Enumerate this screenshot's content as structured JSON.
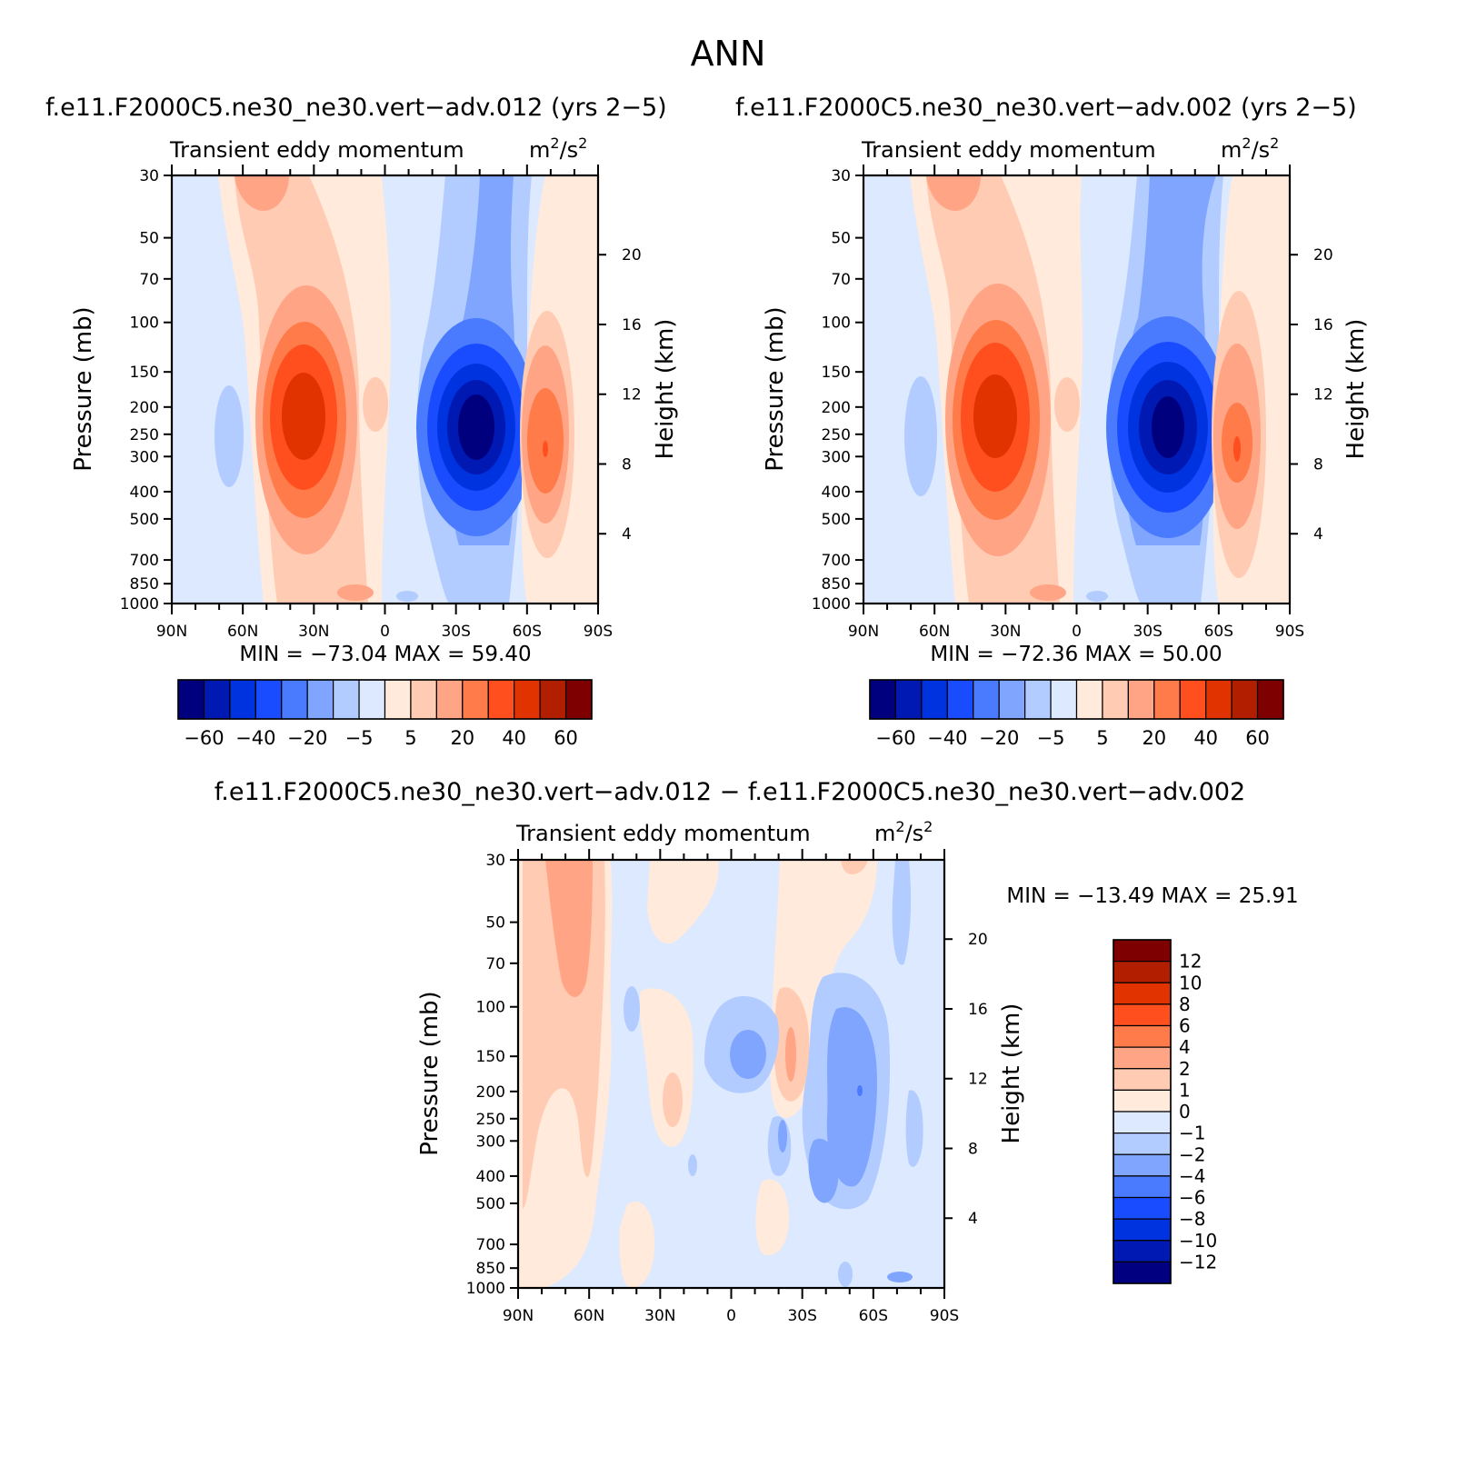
{
  "figure": {
    "title": "ANN"
  },
  "panels": [
    {
      "id": "p1",
      "case_title": "f.e11.F2000C5.ne30_ne30.vert−adv.012 (yrs 2−5)",
      "variable": "Transient eddy momentum",
      "units_base": "m",
      "units_sup1": "2",
      "units_mid": "/s",
      "units_sup2": "2",
      "min_max": "MIN = −73.04   MAX =  59.40"
    },
    {
      "id": "p2",
      "case_title": "f.e11.F2000C5.ne30_ne30.vert−adv.002 (yrs 2−5)",
      "variable": "Transient eddy momentum",
      "units_base": "m",
      "units_sup1": "2",
      "units_mid": "/s",
      "units_sup2": "2",
      "min_max": "MIN = −72.36   MAX =  50.00"
    },
    {
      "id": "p3",
      "case_title": "f.e11.F2000C5.ne30_ne30.vert−adv.012 − f.e11.F2000C5.ne30_ne30.vert−adv.002",
      "variable": "Transient eddy momentum",
      "units_base": "m",
      "units_sup1": "2",
      "units_mid": "/s",
      "units_sup2": "2",
      "min_max": "MIN = −13.49   MAX =  25.91"
    }
  ],
  "axes": {
    "ylabel_left": "Pressure (mb)",
    "ylabel_right": "Height (km)",
    "pressure_ticks": [
      "30",
      "50",
      "70",
      "100",
      "150",
      "200",
      "250",
      "300",
      "400",
      "500",
      "700",
      "850",
      "1000"
    ],
    "height_ticks": [
      "4",
      "8",
      "12",
      "16",
      "20"
    ],
    "x_ticks": [
      "90N",
      "60N",
      "30N",
      "0",
      "30S",
      "60S",
      "90S"
    ]
  },
  "colorbars": {
    "main_labels": [
      "−60",
      "−40",
      "−20",
      "−5",
      "5",
      "20",
      "40",
      "60"
    ],
    "diff_labels": [
      "12",
      "10",
      "8",
      "6",
      "4",
      "2",
      "1",
      "0",
      "−1",
      "−2",
      "−4",
      "−6",
      "−8",
      "−10",
      "−12"
    ]
  },
  "chart_data": [
    {
      "type": "heatmap",
      "title": "f.e11.F2000C5.ne30_ne30.vert−adv.012 (yrs 2−5)",
      "subtitle": "Transient eddy momentum  m2/s2",
      "xlabel": "",
      "ylabel": "Pressure (mb)",
      "y2label": "Height (km)",
      "x_range": [
        "90N",
        "90S"
      ],
      "y_range_mb": [
        30,
        1000
      ],
      "y_scale": "log",
      "levels": [
        -60,
        -50,
        -40,
        -30,
        -20,
        -10,
        -5,
        0,
        5,
        10,
        20,
        30,
        40,
        50,
        60
      ],
      "min": -73.04,
      "max": 59.4,
      "features": [
        {
          "lat": -37,
          "p_mb": 250,
          "value": -73.04,
          "kind": "minimum"
        },
        {
          "lat": 34,
          "p_mb": 225,
          "value": 45,
          "kind": "maximum"
        },
        {
          "lat": -70,
          "p_mb": 300,
          "value": 59.4,
          "kind": "maximum"
        }
      ]
    },
    {
      "type": "heatmap",
      "title": "f.e11.F2000C5.ne30_ne30.vert−adv.002 (yrs 2−5)",
      "subtitle": "Transient eddy momentum  m2/s2",
      "xlabel": "",
      "ylabel": "Pressure (mb)",
      "y2label": "Height (km)",
      "x_range": [
        "90N",
        "90S"
      ],
      "y_range_mb": [
        30,
        1000
      ],
      "y_scale": "log",
      "levels": [
        -60,
        -50,
        -40,
        -30,
        -20,
        -10,
        -5,
        0,
        5,
        10,
        20,
        30,
        40,
        50,
        60
      ],
      "min": -72.36,
      "max": 50.0,
      "features": [
        {
          "lat": -37,
          "p_mb": 250,
          "value": -72.36,
          "kind": "minimum"
        },
        {
          "lat": 33,
          "p_mb": 225,
          "value": 45,
          "kind": "maximum"
        },
        {
          "lat": -70,
          "p_mb": 300,
          "value": 50.0,
          "kind": "maximum"
        }
      ]
    },
    {
      "type": "heatmap",
      "title": "f.e11.F2000C5.ne30_ne30.vert−adv.012 − f.e11.F2000C5.ne30_ne30.vert−adv.002",
      "subtitle": "Transient eddy momentum  m2/s2",
      "xlabel": "",
      "ylabel": "Pressure (mb)",
      "y2label": "Height (km)",
      "x_range": [
        "90N",
        "90S"
      ],
      "y_range_mb": [
        30,
        1000
      ],
      "y_scale": "log",
      "levels": [
        -12,
        -10,
        -8,
        -6,
        -4,
        -2,
        -1,
        0,
        1,
        2,
        4,
        6,
        8,
        10,
        12
      ],
      "min": -13.49,
      "max": 25.91
    }
  ],
  "colors": {
    "main_palette": [
      "#00007f",
      "#0019b2",
      "#0033e0",
      "#1a4cff",
      "#4a7bff",
      "#7fa5ff",
      "#b2ccff",
      "#dde9ff",
      "#ffeadb",
      "#ffcbb2",
      "#ffa585",
      "#ff7b4a",
      "#ff4f1f",
      "#e03300",
      "#b21f00",
      "#7f0000"
    ],
    "diff_palette": [
      "#000080",
      "#0019b2",
      "#0033e0",
      "#1a4cff",
      "#4a7bff",
      "#7fa5ff",
      "#b2ccff",
      "#dde9ff",
      "#ffeadb",
      "#ffcbb2",
      "#ffa585",
      "#ff7b4a",
      "#ff4f1f",
      "#e03300",
      "#b21f00",
      "#7f0000"
    ]
  }
}
